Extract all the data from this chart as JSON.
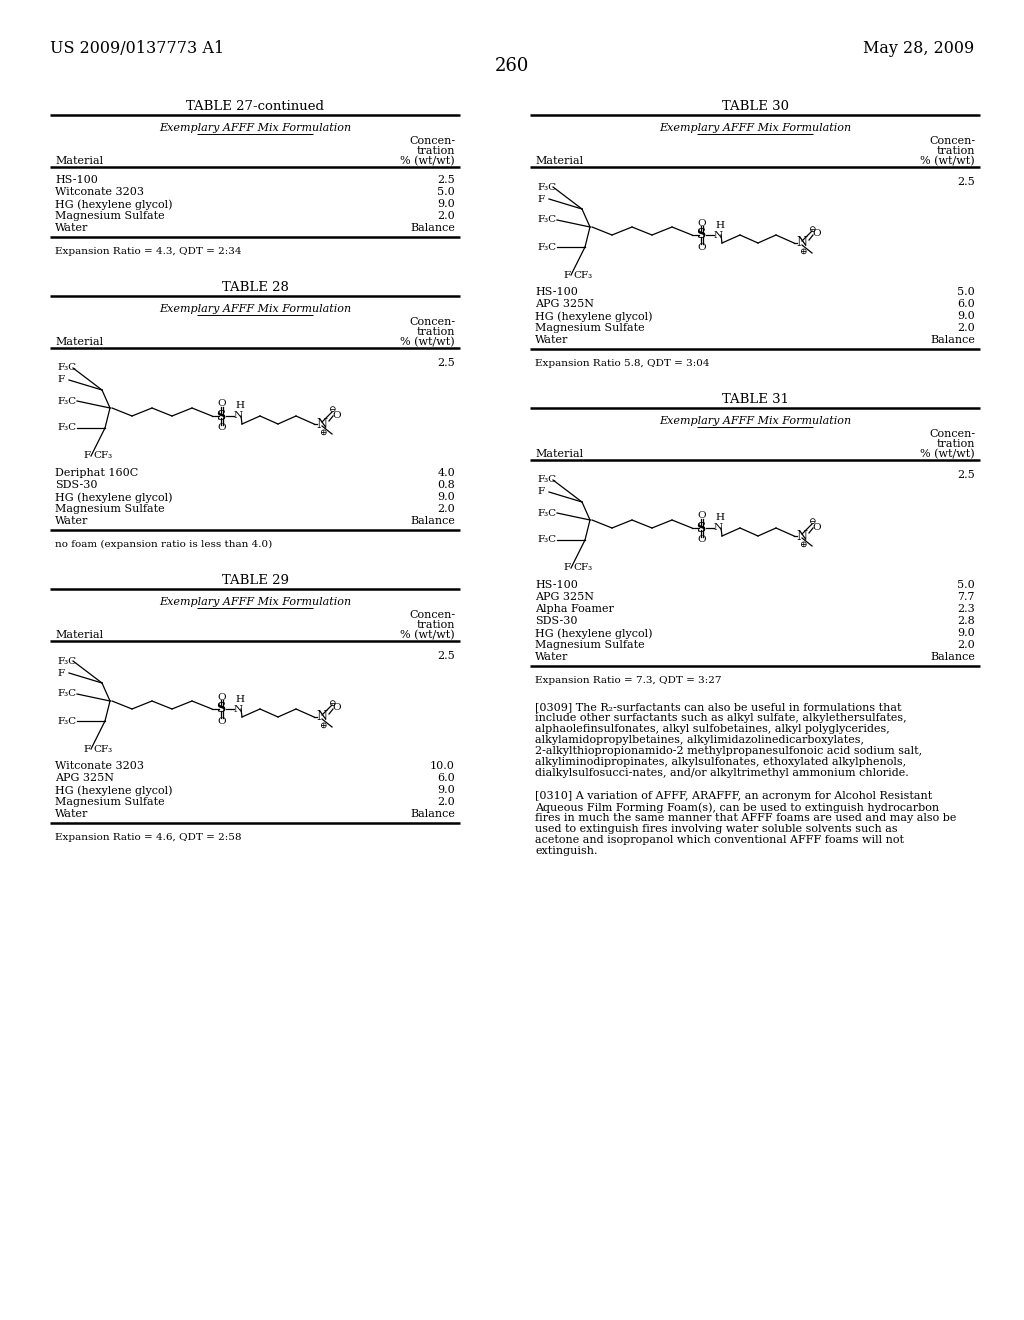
{
  "page_header_left": "US 2009/0137773 A1",
  "page_header_right": "May 28, 2009",
  "page_number": "260",
  "bg_color": "#ffffff",
  "text_color": "#000000",
  "table27cont": {
    "title": "TABLE 27-continued",
    "subtitle": "Exemplary AFFF Mix Formulation",
    "col1": "Material",
    "col2_line1": "Concen-",
    "col2_line2": "tration",
    "col2_line3": "% (wt/wt)",
    "rows": [
      [
        "HS-100",
        "2.5"
      ],
      [
        "Witconate 3203",
        "5.0"
      ],
      [
        "HG (hexylene glycol)",
        "9.0"
      ],
      [
        "Magnesium Sulfate",
        "2.0"
      ],
      [
        "Water",
        "Balance"
      ]
    ],
    "footnote": "Expansion Ratio = 4.3, QDT = 2:34"
  },
  "table28": {
    "title": "TABLE 28",
    "subtitle": "Exemplary AFFF Mix Formulation",
    "col1": "Material",
    "col2_line1": "Concen-",
    "col2_line2": "tration",
    "col2_line3": "% (wt/wt)",
    "chem_value": "2.5",
    "rows": [
      [
        "Deriphat 160C",
        "4.0"
      ],
      [
        "SDS-30",
        "0.8"
      ],
      [
        "HG (hexylene glycol)",
        "9.0"
      ],
      [
        "Magnesium Sulfate",
        "2.0"
      ],
      [
        "Water",
        "Balance"
      ]
    ],
    "footnote": "no foam (expansion ratio is less than 4.0)"
  },
  "table29": {
    "title": "TABLE 29",
    "subtitle": "Exemplary AFFF Mix Formulation",
    "col1": "Material",
    "col2_line1": "Concen-",
    "col2_line2": "tration",
    "col2_line3": "% (wt/wt)",
    "chem_value": "2.5",
    "rows": [
      [
        "Witconate 3203",
        "10.0"
      ],
      [
        "APG 325N",
        "6.0"
      ],
      [
        "HG (hexylene glycol)",
        "9.0"
      ],
      [
        "Magnesium Sulfate",
        "2.0"
      ],
      [
        "Water",
        "Balance"
      ]
    ],
    "footnote": "Expansion Ratio = 4.6, QDT = 2:58"
  },
  "table30": {
    "title": "TABLE 30",
    "subtitle": "Exemplary AFFF Mix Formulation",
    "col1": "Material",
    "col2_line1": "Concen-",
    "col2_line2": "tration",
    "col2_line3": "% (wt/wt)",
    "chem_value": "2.5",
    "rows": [
      [
        "HS-100",
        "5.0"
      ],
      [
        "APG 325N",
        "6.0"
      ],
      [
        "HG (hexylene glycol)",
        "9.0"
      ],
      [
        "Magnesium Sulfate",
        "2.0"
      ],
      [
        "Water",
        "Balance"
      ]
    ],
    "footnote": "Expansion Ratio 5.8, QDT = 3:04"
  },
  "table31": {
    "title": "TABLE 31",
    "subtitle": "Exemplary AFFF Mix Formulation",
    "col1": "Material",
    "col2_line1": "Concen-",
    "col2_line2": "tration",
    "col2_line3": "% (wt/wt)",
    "chem_value": "2.5",
    "rows": [
      [
        "HS-100",
        "5.0"
      ],
      [
        "APG 325N",
        "7.7"
      ],
      [
        "Alpha Foamer",
        "2.3"
      ],
      [
        "SDS-30",
        "2.8"
      ],
      [
        "HG (hexylene glycol)",
        "9.0"
      ],
      [
        "Magnesium Sulfate",
        "2.0"
      ],
      [
        "Water",
        "Balance"
      ]
    ],
    "footnote": "Expansion Ratio = 7.3, QDT = 3:27"
  },
  "paragraph_0309": "[0309]    The R₂-surfactants can also be useful in formulations that include other surfactants such as alkyl sulfate, alkylethersulfates, alphaolefinsulfonates, alkyl sulfobetaines, alkyl polyglycerides, alkylamidopropylbetaines, alkylimidazolinedicarboxylates, 2-alkylthiopropionamido-2 methylpropanesulfonoic acid sodium salt, alkyliminodipropinates, alkylsulfonates, ethoxylated alkylphenols, dialkylsulfosucci-nates, and/or alkyltrimethyl ammonium chloride.",
  "paragraph_0310": "[0310]    A variation of AFFF, ARAFFF, an acronym for Alcohol Resistant Aqueous Film Forming Foam(s), can be used to extinguish hydrocarbon fires in much the same manner that AFFF foams are used and may also be used to extinguish fires involving water soluble solvents such as acetone and isopropanol which conventional AFFF foams will not extinguish."
}
